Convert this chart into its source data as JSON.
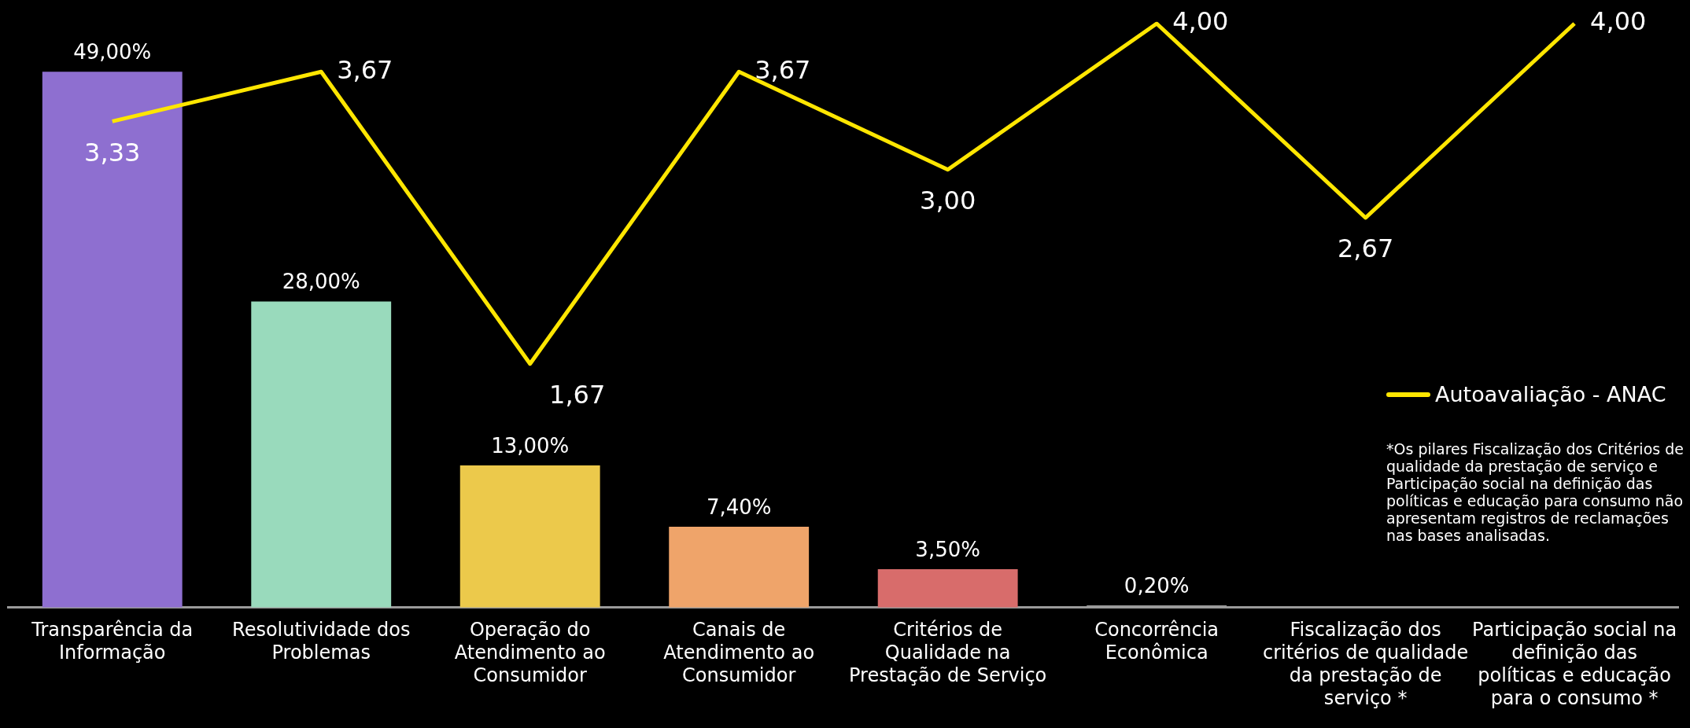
{
  "chart_data": {
    "type": "bar",
    "categories": [
      "Transparência da Informação",
      "Resolutividade dos Problemas",
      "Operação do Atendimento ao Consumidor",
      "Canais de Atendimento ao Consumidor",
      "Critérios de Qualidade na Prestação de Serviço",
      "Concorrência Econômica",
      "Fiscalização dos critérios de qualidade da prestação de serviço *",
      "Participação social na definição das políticas e educação para o consumo *"
    ],
    "series": [
      {
        "colors": [
          "#8e6fd0",
          "#99dabc",
          "#ecc94b",
          "#efa46a",
          "#d86c6b",
          "#9b9b9b",
          null,
          null
        ],
        "values": [
          49,
          28,
          13,
          7.4,
          3.5,
          0.2,
          null,
          null
        ],
        "value_labels": [
          "49,00%",
          "28,00%",
          "13,00%",
          "7,40%",
          "3,50%",
          "0,20%",
          null,
          null
        ]
      },
      {
        "type": "line",
        "name": "Autoavaliação - ANAC",
        "color": "#ffe600",
        "axis": "y2",
        "values": [
          3.33,
          3.67,
          1.67,
          3.67,
          3.0,
          4.0,
          2.67,
          4.0
        ],
        "value_labels": [
          "3,33",
          "3,67",
          "1,67",
          "3,67",
          "3,00",
          "4,00",
          "2,67",
          "4,00"
        ]
      }
    ],
    "legend": "right",
    "marker": "none",
    "annotations": [
      "*Os pilares Fiscalização dos Critérios de qualidade da prestação de serviço e Participação social na definição das políticas e educação para consumo não apresentam registros de reclamações nas bases analisadas."
    ]
  }
}
